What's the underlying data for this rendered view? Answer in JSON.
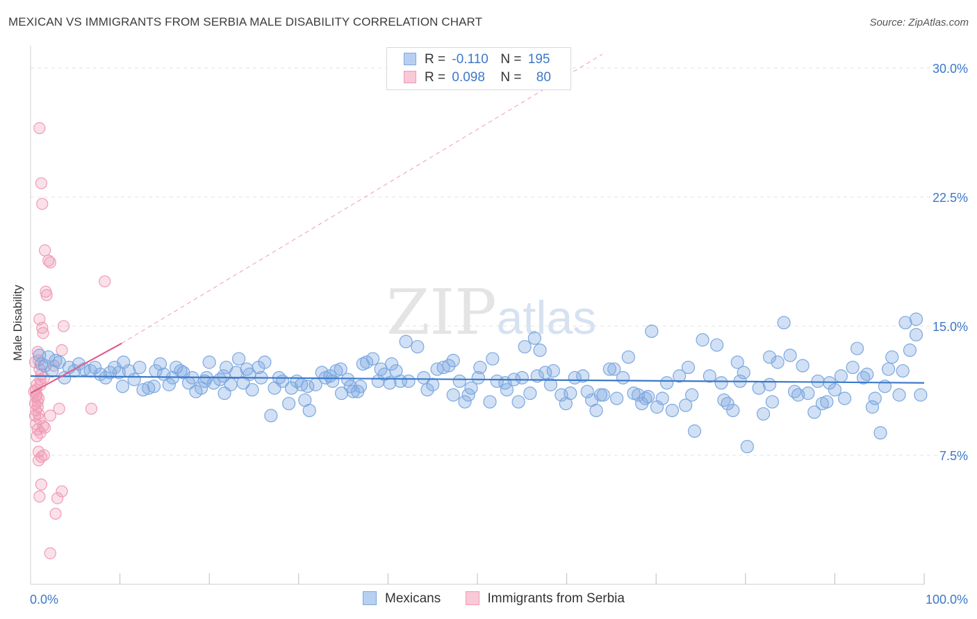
{
  "title": "MEXICAN VS IMMIGRANTS FROM SERBIA MALE DISABILITY CORRELATION CHART",
  "source": "Source: ZipAtlas.com",
  "watermark": {
    "zip": "ZIP",
    "atlas": "atlas"
  },
  "legend": {
    "rows": [
      {
        "r_label": "R = ",
        "r_value": "-0.110",
        "n_label": "N = ",
        "n_value": "195",
        "color": "#7ba7e0",
        "fill": "#b7d0f2"
      },
      {
        "r_label": "R = ",
        "r_value": "0.098",
        "n_label": "N = ",
        "n_value": "80",
        "color": "#f09ab5",
        "fill": "#f9c9d8"
      }
    ]
  },
  "bottom_legend": [
    {
      "label": "Mexicans",
      "color": "#7ba7e0",
      "fill": "#b7d0f2"
    },
    {
      "label": "Immigrants from Serbia",
      "color": "#f09ab5",
      "fill": "#f9c9d8"
    }
  ],
  "chart_data": {
    "type": "scatter",
    "title": "MEXICAN VS IMMIGRANTS FROM SERBIA MALE DISABILITY CORRELATION CHART",
    "xlabel": "",
    "ylabel": "Male Disability",
    "xlim": [
      0,
      100
    ],
    "ylim": [
      0,
      30.8
    ],
    "x_tick_labels": [
      "0.0%",
      "100.0%"
    ],
    "y_ticks": [
      7.5,
      15.0,
      22.5,
      30.0
    ],
    "y_tick_labels": [
      "7.5%",
      "15.0%",
      "22.5%",
      "30.0%"
    ],
    "grid": true,
    "series": [
      {
        "name": "Mexicans",
        "color": "#3b78c8",
        "point_color": "#7ba7e0",
        "trend": {
          "x": [
            0,
            100
          ],
          "y": [
            12.1,
            11.7
          ]
        },
        "points": [
          [
            1.0,
            13.3
          ],
          [
            1.2,
            12.8
          ],
          [
            1.6,
            12.7
          ],
          [
            2.0,
            13.2
          ],
          [
            2.4,
            12.4
          ],
          [
            2.8,
            13.0
          ],
          [
            3.2,
            12.9
          ],
          [
            3.8,
            12.0
          ],
          [
            4.3,
            12.6
          ],
          [
            4.9,
            12.4
          ],
          [
            5.4,
            12.8
          ],
          [
            6.0,
            12.5
          ],
          [
            6.7,
            12.4
          ],
          [
            7.2,
            12.6
          ],
          [
            7.8,
            12.2
          ],
          [
            8.4,
            12.0
          ],
          [
            8.9,
            12.3
          ],
          [
            9.4,
            12.6
          ],
          [
            9.9,
            12.3
          ],
          [
            10.4,
            12.9
          ],
          [
            10.3,
            11.5
          ],
          [
            11.0,
            12.4
          ],
          [
            11.6,
            11.9
          ],
          [
            12.2,
            12.6
          ],
          [
            12.6,
            11.3
          ],
          [
            13.2,
            11.4
          ],
          [
            13.8,
            11.5
          ],
          [
            14.0,
            12.4
          ],
          [
            14.5,
            12.8
          ],
          [
            14.9,
            12.2
          ],
          [
            15.5,
            11.6
          ],
          [
            15.9,
            12.0
          ],
          [
            16.3,
            12.6
          ],
          [
            16.8,
            12.4
          ],
          [
            17.1,
            12.3
          ],
          [
            17.7,
            11.7
          ],
          [
            18.1,
            12.0
          ],
          [
            18.5,
            11.2
          ],
          [
            19.1,
            11.4
          ],
          [
            19.5,
            11.8
          ],
          [
            19.7,
            12.0
          ],
          [
            20.0,
            12.9
          ],
          [
            20.5,
            11.7
          ],
          [
            21.2,
            11.9
          ],
          [
            21.6,
            12.1
          ],
          [
            21.9,
            12.6
          ],
          [
            21.7,
            11.1
          ],
          [
            22.4,
            11.6
          ],
          [
            23.0,
            12.3
          ],
          [
            23.3,
            13.1
          ],
          [
            23.8,
            11.7
          ],
          [
            24.2,
            12.5
          ],
          [
            24.5,
            12.2
          ],
          [
            24.8,
            11.3
          ],
          [
            25.5,
            12.6
          ],
          [
            25.8,
            12.0
          ],
          [
            26.2,
            12.9
          ],
          [
            26.9,
            9.8
          ],
          [
            27.3,
            11.4
          ],
          [
            27.8,
            12.0
          ],
          [
            28.2,
            11.8
          ],
          [
            28.9,
            10.5
          ],
          [
            29.2,
            11.4
          ],
          [
            29.8,
            11.8
          ],
          [
            30.3,
            11.6
          ],
          [
            30.7,
            10.7
          ],
          [
            31.0,
            11.5
          ],
          [
            31.2,
            10.1
          ],
          [
            31.9,
            11.6
          ],
          [
            32.6,
            12.3
          ],
          [
            33.0,
            12.0
          ],
          [
            33.5,
            12.1
          ],
          [
            33.8,
            11.8
          ],
          [
            34.2,
            12.4
          ],
          [
            34.8,
            11.1
          ],
          [
            34.7,
            12.5
          ],
          [
            35.5,
            11.9
          ],
          [
            35.8,
            11.5
          ],
          [
            36.1,
            11.2
          ],
          [
            36.6,
            11.2
          ],
          [
            36.9,
            11.5
          ],
          [
            37.2,
            12.8
          ],
          [
            37.6,
            12.9
          ],
          [
            38.3,
            13.1
          ],
          [
            38.9,
            11.8
          ],
          [
            39.2,
            12.5
          ],
          [
            39.6,
            12.2
          ],
          [
            40.2,
            11.7
          ],
          [
            40.4,
            12.8
          ],
          [
            40.9,
            12.4
          ],
          [
            41.4,
            11.8
          ],
          [
            42.0,
            14.1
          ],
          [
            42.3,
            11.8
          ],
          [
            43.3,
            13.8
          ],
          [
            44.0,
            12.0
          ],
          [
            44.4,
            11.3
          ],
          [
            45.0,
            11.6
          ],
          [
            45.5,
            12.5
          ],
          [
            46.2,
            12.6
          ],
          [
            46.8,
            12.7
          ],
          [
            47.3,
            13.0
          ],
          [
            47.3,
            11.0
          ],
          [
            48.0,
            11.8
          ],
          [
            48.6,
            10.6
          ],
          [
            49.0,
            11.0
          ],
          [
            49.3,
            11.4
          ],
          [
            50.1,
            12.0
          ],
          [
            50.3,
            12.6
          ],
          [
            51.4,
            10.6
          ],
          [
            51.7,
            13.1
          ],
          [
            52.2,
            11.8
          ],
          [
            53.1,
            11.7
          ],
          [
            53.3,
            11.3
          ],
          [
            54.1,
            11.9
          ],
          [
            54.6,
            10.6
          ],
          [
            55.0,
            12.0
          ],
          [
            55.3,
            13.8
          ],
          [
            55.9,
            11.1
          ],
          [
            56.4,
            14.3
          ],
          [
            56.7,
            12.1
          ],
          [
            57.0,
            13.6
          ],
          [
            57.6,
            12.3
          ],
          [
            58.2,
            11.6
          ],
          [
            58.5,
            12.4
          ],
          [
            59.4,
            11.0
          ],
          [
            59.9,
            10.5
          ],
          [
            60.4,
            11.1
          ],
          [
            60.9,
            12.0
          ],
          [
            61.8,
            12.1
          ],
          [
            62.3,
            11.2
          ],
          [
            62.8,
            10.7
          ],
          [
            63.3,
            10.1
          ],
          [
            63.8,
            11.0
          ],
          [
            64.1,
            11.0
          ],
          [
            64.8,
            12.5
          ],
          [
            65.3,
            12.5
          ],
          [
            65.6,
            10.8
          ],
          [
            66.3,
            12.0
          ],
          [
            66.9,
            13.2
          ],
          [
            67.5,
            11.1
          ],
          [
            68.0,
            11.0
          ],
          [
            68.4,
            10.5
          ],
          [
            68.8,
            10.8
          ],
          [
            69.1,
            10.9
          ],
          [
            69.5,
            14.7
          ],
          [
            70.1,
            10.3
          ],
          [
            70.7,
            10.8
          ],
          [
            71.2,
            11.7
          ],
          [
            71.8,
            10.1
          ],
          [
            72.6,
            12.1
          ],
          [
            73.3,
            10.4
          ],
          [
            73.6,
            12.6
          ],
          [
            74.0,
            11.0
          ],
          [
            74.3,
            8.9
          ],
          [
            75.2,
            14.2
          ],
          [
            76.0,
            12.1
          ],
          [
            76.8,
            13.9
          ],
          [
            77.3,
            11.7
          ],
          [
            77.6,
            10.7
          ],
          [
            78.0,
            10.5
          ],
          [
            78.6,
            10.1
          ],
          [
            79.1,
            12.9
          ],
          [
            79.4,
            11.8
          ],
          [
            79.8,
            12.3
          ],
          [
            80.2,
            8.0
          ],
          [
            81.5,
            11.4
          ],
          [
            82.0,
            9.9
          ],
          [
            82.7,
            13.2
          ],
          [
            82.7,
            11.6
          ],
          [
            83.0,
            10.6
          ],
          [
            83.6,
            12.9
          ],
          [
            84.3,
            15.2
          ],
          [
            85.0,
            13.3
          ],
          [
            85.5,
            11.2
          ],
          [
            85.9,
            11.0
          ],
          [
            86.4,
            12.7
          ],
          [
            87.0,
            11.1
          ],
          [
            87.7,
            10.0
          ],
          [
            88.1,
            11.8
          ],
          [
            88.6,
            10.5
          ],
          [
            89.1,
            10.6
          ],
          [
            89.4,
            11.7
          ],
          [
            90.0,
            11.3
          ],
          [
            90.7,
            12.1
          ],
          [
            91.1,
            10.8
          ],
          [
            92.0,
            12.6
          ],
          [
            92.5,
            13.7
          ],
          [
            93.2,
            12.0
          ],
          [
            93.6,
            12.2
          ],
          [
            94.2,
            10.3
          ],
          [
            94.5,
            10.8
          ],
          [
            95.1,
            8.8
          ],
          [
            95.6,
            11.5
          ],
          [
            96.0,
            12.5
          ],
          [
            96.4,
            13.2
          ],
          [
            97.2,
            11.0
          ],
          [
            97.6,
            12.4
          ],
          [
            97.9,
            15.2
          ],
          [
            98.4,
            13.6
          ],
          [
            99.1,
            14.5
          ],
          [
            99.6,
            11.0
          ],
          [
            99.1,
            15.4
          ]
        ]
      },
      {
        "name": "Immigrants from Serbia",
        "color": "#e0608a",
        "point_color": "#f09ab5",
        "trend": {
          "x": [
            0,
            10.2
          ],
          "y": [
            11.1,
            14.0
          ]
        },
        "trend_extension": {
          "x": [
            10.2,
            64.0
          ],
          "y": [
            14.0,
            30.8
          ]
        },
        "points": [
          [
            1.0,
            26.5
          ],
          [
            1.2,
            23.3
          ],
          [
            1.3,
            22.1
          ],
          [
            1.6,
            19.4
          ],
          [
            2.0,
            18.8
          ],
          [
            2.2,
            18.7
          ],
          [
            1.7,
            17.0
          ],
          [
            1.8,
            16.8
          ],
          [
            8.3,
            17.6
          ],
          [
            1.0,
            15.4
          ],
          [
            1.3,
            14.9
          ],
          [
            1.4,
            14.6
          ],
          [
            3.7,
            15.0
          ],
          [
            0.8,
            13.5
          ],
          [
            0.9,
            13.0
          ],
          [
            1.0,
            12.5
          ],
          [
            1.2,
            12.2
          ],
          [
            1.1,
            11.9
          ],
          [
            0.7,
            11.6
          ],
          [
            0.6,
            11.3
          ],
          [
            0.7,
            11.0
          ],
          [
            0.9,
            10.8
          ],
          [
            0.5,
            10.5
          ],
          [
            0.8,
            10.3
          ],
          [
            0.6,
            10.1
          ],
          [
            0.9,
            9.9
          ],
          [
            1.0,
            9.6
          ],
          [
            0.6,
            9.3
          ],
          [
            0.8,
            9.0
          ],
          [
            1.1,
            8.8
          ],
          [
            0.7,
            8.6
          ],
          [
            1.4,
            9.2
          ],
          [
            1.6,
            9.1
          ],
          [
            2.2,
            9.8
          ],
          [
            3.2,
            10.2
          ],
          [
            6.8,
            10.2
          ],
          [
            0.9,
            7.7
          ],
          [
            1.2,
            7.4
          ],
          [
            1.5,
            7.5
          ],
          [
            0.9,
            7.2
          ],
          [
            1.2,
            5.8
          ],
          [
            1.0,
            5.1
          ],
          [
            3.0,
            5.0
          ],
          [
            3.5,
            5.4
          ],
          [
            2.8,
            4.1
          ],
          [
            2.2,
            1.8
          ],
          [
            3.5,
            13.6
          ],
          [
            2.6,
            12.7
          ],
          [
            1.5,
            12.0
          ],
          [
            1.1,
            11.6
          ],
          [
            0.4,
            11.2
          ],
          [
            0.6,
            10.9
          ],
          [
            0.8,
            10.6
          ],
          [
            0.5,
            9.8
          ],
          [
            0.5,
            12.9
          ]
        ]
      }
    ]
  }
}
